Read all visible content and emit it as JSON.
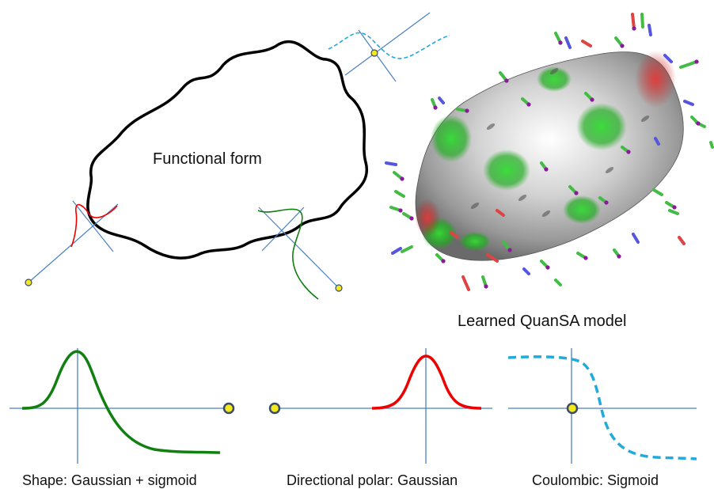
{
  "labels": {
    "functional_form": "Functional form",
    "learned_model": "Learned QuanSA model",
    "shape_caption": "Shape: Gaussian + sigmoid",
    "polar_caption": "Directional polar: Gaussian",
    "coulombic_caption": "Coulombic: Sigmoid"
  },
  "colors": {
    "outline": "#000000",
    "axis": "#4a7fc1",
    "shape_curve": "#118011",
    "polar_curve": "#ee0000",
    "coulombic_curve": "#22aadd",
    "probe_fill": "#f2ea1c",
    "probe_stroke": "#3a4a6a",
    "surface_gray": "#c8c8c8",
    "surface_green": "#33cc33",
    "surface_red": "#dd3333"
  }
}
